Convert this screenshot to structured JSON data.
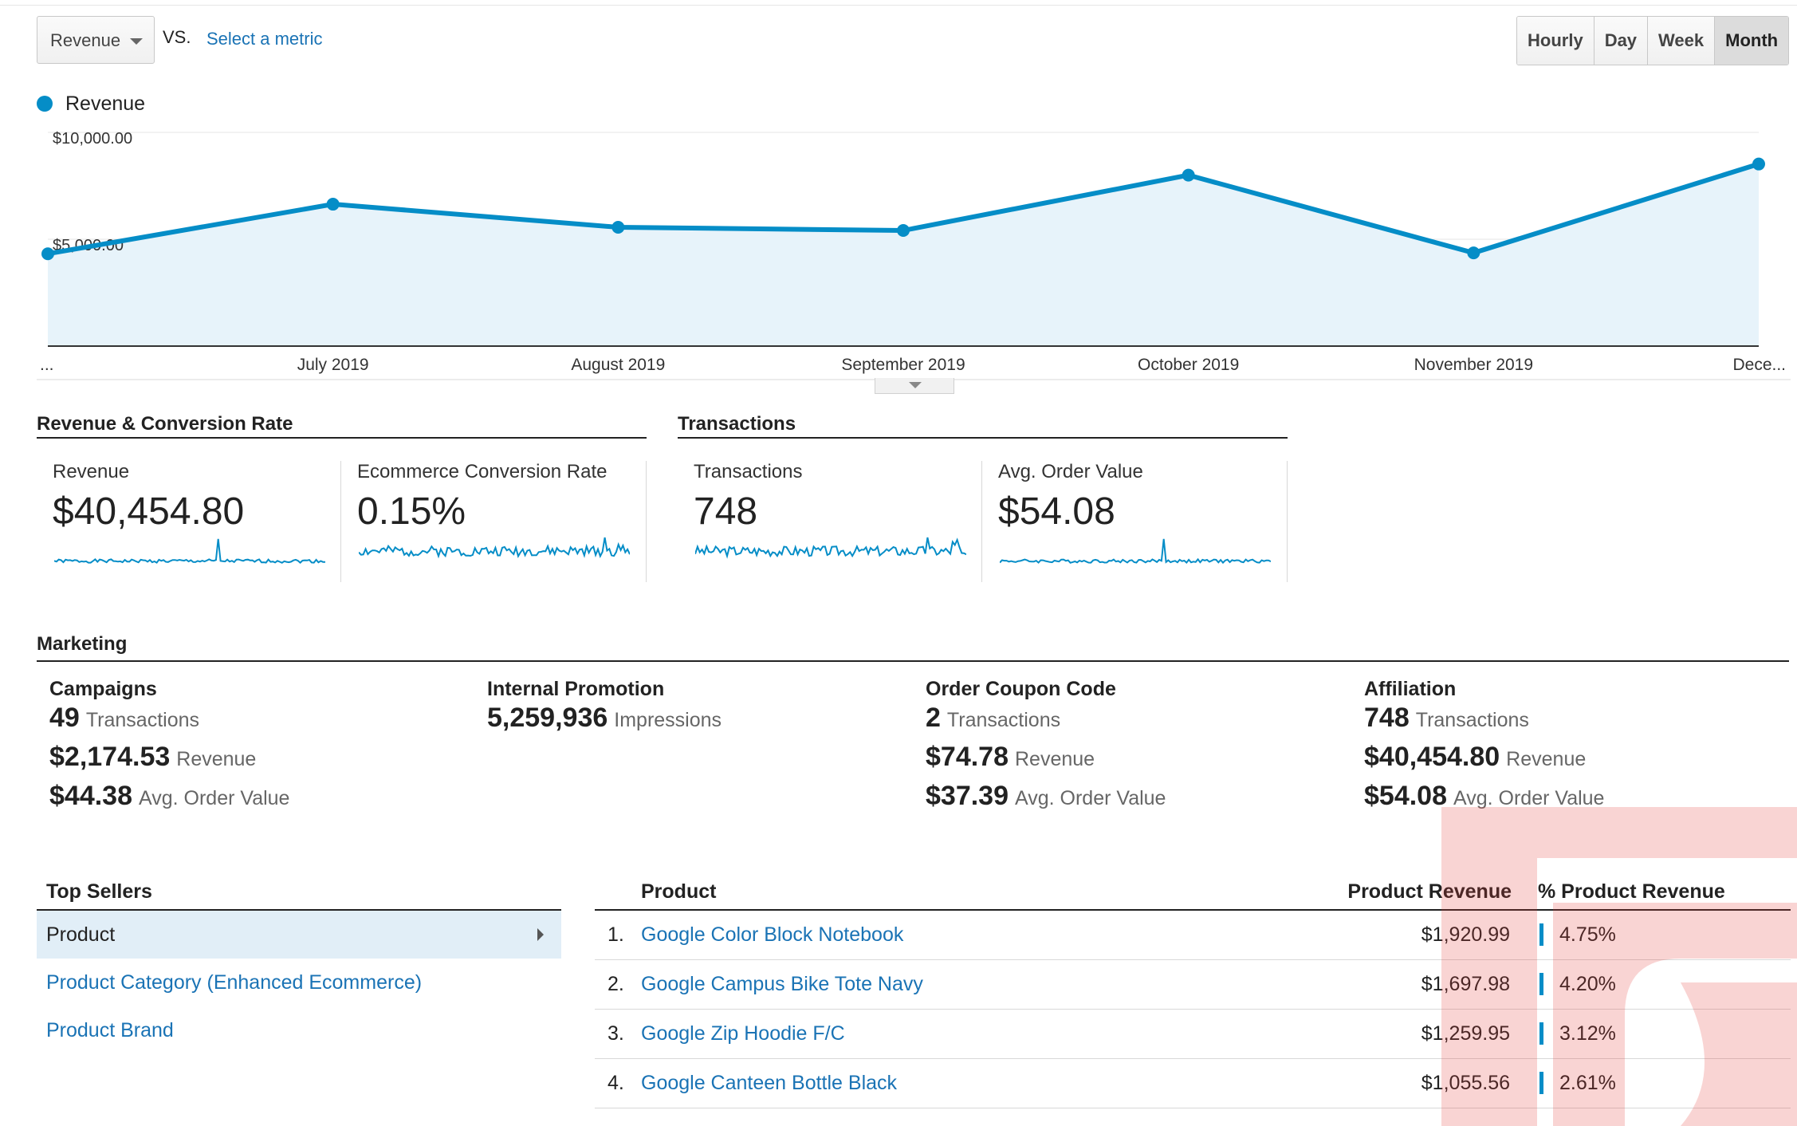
{
  "toolbar": {
    "metric_select": "Revenue",
    "vs": "VS.",
    "select_metric": "Select a metric",
    "granularity": [
      "Hourly",
      "Day",
      "Week",
      "Month"
    ],
    "active_granularity": "Month"
  },
  "chart_data": {
    "type": "area",
    "series": [
      {
        "name": "Revenue",
        "values": [
          4320,
          6640,
          5560,
          5410,
          8000,
          4360,
          8520
        ]
      }
    ],
    "x_labels": [
      "...",
      "July 2019",
      "August 2019",
      "September 2019",
      "October 2019",
      "November 2019",
      "Dece..."
    ],
    "y_ticks": [
      "$10,000.00",
      "$5,000.00"
    ],
    "ylim": [
      0,
      10000
    ],
    "grid": true,
    "legend": "top-left",
    "color": "#058dc7"
  },
  "sections": {
    "revenue_conv": "Revenue & Conversion Rate",
    "transactions": "Transactions",
    "marketing": "Marketing"
  },
  "scorecards": [
    {
      "label": "Revenue",
      "value": "$40,454.80"
    },
    {
      "label": "Ecommerce Conversion Rate",
      "value": "0.15%"
    },
    {
      "label": "Transactions",
      "value": "748"
    },
    {
      "label": "Avg. Order Value",
      "value": "$54.08"
    }
  ],
  "marketing": [
    {
      "title": "Campaigns",
      "rows": [
        {
          "value": "49",
          "label": "Transactions"
        },
        {
          "value": "$2,174.53",
          "label": "Revenue"
        },
        {
          "value": "$44.38",
          "label": "Avg. Order Value"
        }
      ]
    },
    {
      "title": "Internal Promotion",
      "rows": [
        {
          "value": "5,259,936",
          "label": "Impressions"
        }
      ]
    },
    {
      "title": "Order Coupon Code",
      "rows": [
        {
          "value": "2",
          "label": "Transactions"
        },
        {
          "value": "$74.78",
          "label": "Revenue"
        },
        {
          "value": "$37.39",
          "label": "Avg. Order Value"
        }
      ]
    },
    {
      "title": "Affiliation",
      "rows": [
        {
          "value": "748",
          "label": "Transactions"
        },
        {
          "value": "$40,454.80",
          "label": "Revenue"
        },
        {
          "value": "$54.08",
          "label": "Avg. Order Value"
        }
      ]
    }
  ],
  "top_sellers": {
    "title": "Top Sellers",
    "items": [
      "Product",
      "Product Category (Enhanced Ecommerce)",
      "Product Brand"
    ]
  },
  "product_table": {
    "headers": {
      "product": "Product",
      "revenue": "Product Revenue",
      "pct": "% Product Revenue"
    },
    "rows": [
      {
        "num": "1.",
        "product": "Google Color Block Notebook",
        "revenue": "$1,920.99",
        "pct": "4.75%"
      },
      {
        "num": "2.",
        "product": "Google Campus Bike Tote Navy",
        "revenue": "$1,697.98",
        "pct": "4.20%"
      },
      {
        "num": "3.",
        "product": "Google Zip Hoodie F/C",
        "revenue": "$1,259.95",
        "pct": "3.12%"
      },
      {
        "num": "4.",
        "product": "Google Canteen Bottle Black",
        "revenue": "$1,055.56",
        "pct": "2.61%"
      }
    ]
  }
}
